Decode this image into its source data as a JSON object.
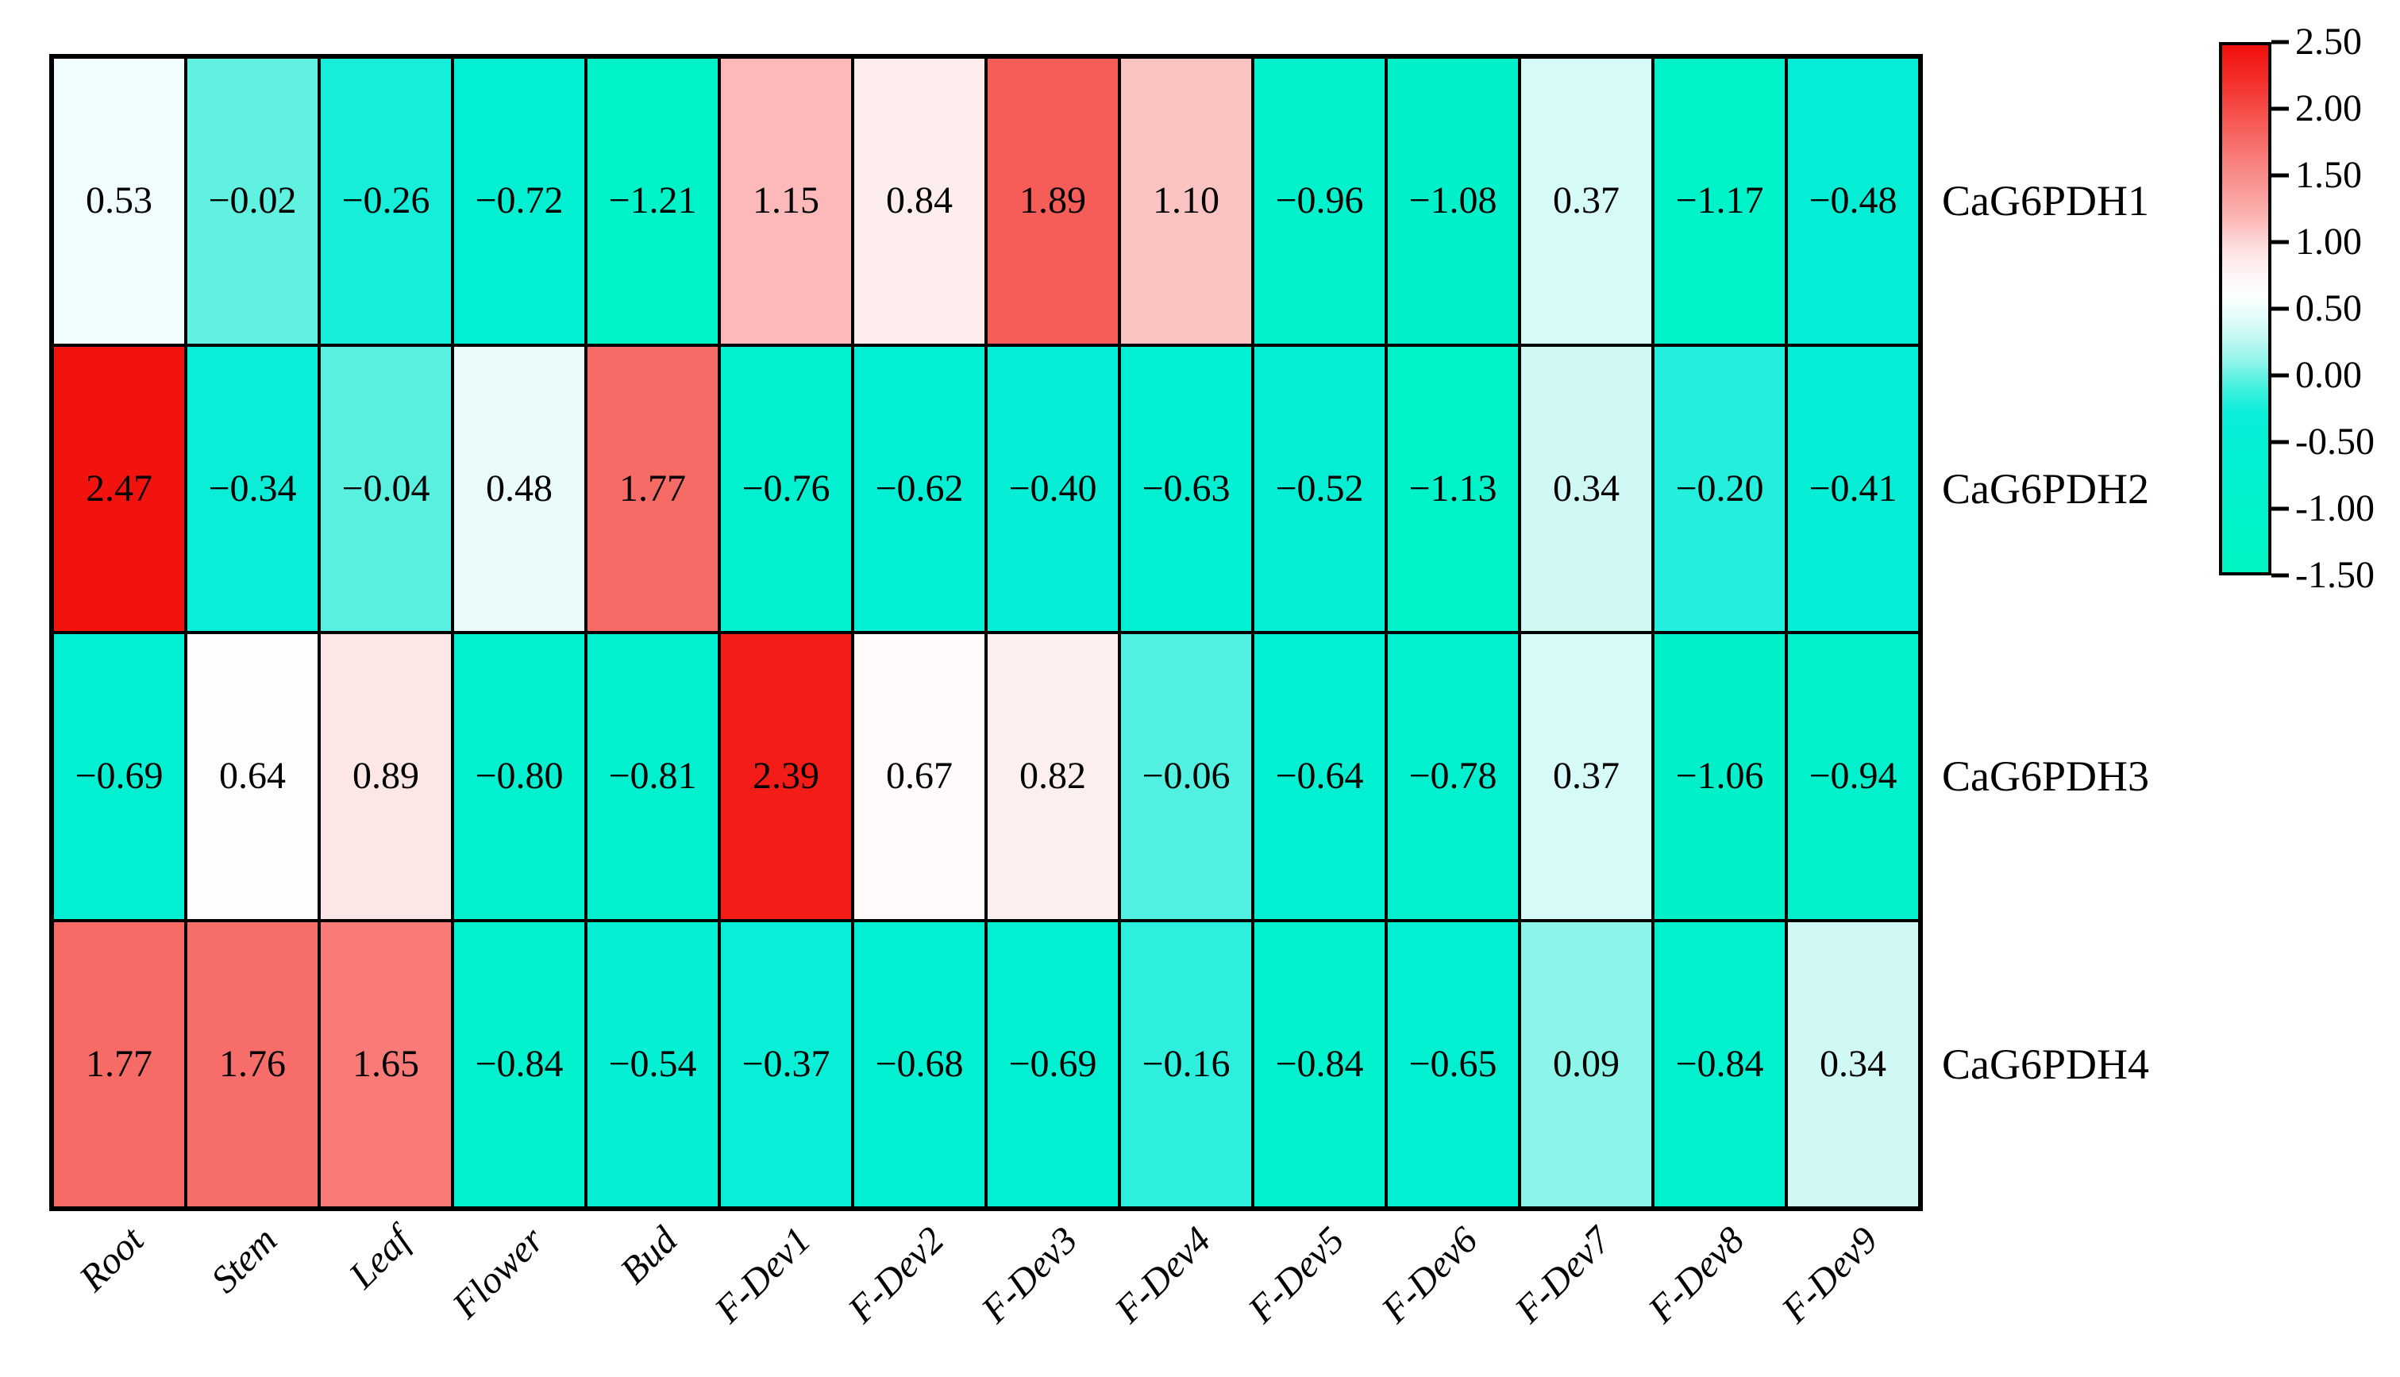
{
  "figure": {
    "background": "#ffffff",
    "border_color": "#000000",
    "text_color": "#000000"
  },
  "chart_data": {
    "type": "heatmap",
    "columns": [
      "Root",
      "Stem",
      "Leaf",
      "Flower",
      "Bud",
      "F-Dev1",
      "F-Dev2",
      "F-Dev3",
      "F-Dev4",
      "F-Dev5",
      "F-Dev6",
      "F-Dev7",
      "F-Dev8",
      "F-Dev9"
    ],
    "rows": [
      "CaG6PDH1",
      "CaG6PDH2",
      "CaG6PDH3",
      "CaG6PDH4"
    ],
    "values": [
      [
        0.53,
        -0.02,
        -0.26,
        -0.72,
        -1.21,
        1.15,
        0.84,
        1.89,
        1.1,
        -0.96,
        -1.08,
        0.37,
        -1.17,
        -0.48
      ],
      [
        2.47,
        -0.34,
        -0.04,
        0.48,
        1.77,
        -0.76,
        -0.62,
        -0.4,
        -0.63,
        -0.52,
        -1.13,
        0.34,
        -0.2,
        -0.41
      ],
      [
        -0.69,
        0.64,
        0.89,
        -0.8,
        -0.81,
        2.39,
        0.67,
        0.82,
        -0.06,
        -0.64,
        -0.78,
        0.37,
        -1.06,
        -0.94
      ],
      [
        1.77,
        1.76,
        1.65,
        -0.84,
        -0.54,
        -0.37,
        -0.68,
        -0.69,
        -0.16,
        -0.84,
        -0.65,
        0.09,
        -0.84,
        0.34
      ]
    ],
    "cell_value_decimals": 2,
    "minus_sign": "−",
    "grid_on": true,
    "xlabel": "",
    "ylabel": "",
    "x_tick_rotation_deg": 45,
    "colorbar": {
      "position": "right",
      "vmin": -1.5,
      "vmax": 2.5,
      "ticks": [
        "2.50",
        "2.00",
        "1.50",
        "1.00",
        "0.50",
        "0.00",
        "-0.50",
        "-1.00",
        "-1.50"
      ]
    },
    "colormap_stops": [
      [
        -1.5,
        "#00f5c1"
      ],
      [
        -1.2,
        "#00f2c8"
      ],
      [
        -1.0,
        "#00f1cb"
      ],
      [
        -0.8,
        "#01f0cf"
      ],
      [
        -0.6,
        "#03efd3"
      ],
      [
        -0.45,
        "#05eed5"
      ],
      [
        -0.3,
        "#0ceed9"
      ],
      [
        -0.15,
        "#30efdd"
      ],
      [
        -0.05,
        "#55f0e0"
      ],
      [
        0.0,
        "#68f1e2"
      ],
      [
        0.1,
        "#90f4e9"
      ],
      [
        0.25,
        "#bcf7f1"
      ],
      [
        0.4,
        "#ddfbf8"
      ],
      [
        0.52,
        "#effdfc"
      ],
      [
        0.62,
        "#ffffff"
      ],
      [
        0.72,
        "#fef7f7"
      ],
      [
        0.85,
        "#fdeceb"
      ],
      [
        1.0,
        "#fcd9d8"
      ],
      [
        1.15,
        "#fbbab9"
      ],
      [
        1.35,
        "#f9a19e"
      ],
      [
        1.55,
        "#f88885"
      ],
      [
        1.75,
        "#f76e6a"
      ],
      [
        1.95,
        "#f55450"
      ],
      [
        2.15,
        "#f43a35"
      ],
      [
        2.35,
        "#f3201b"
      ],
      [
        2.5,
        "#f2100c"
      ]
    ]
  }
}
